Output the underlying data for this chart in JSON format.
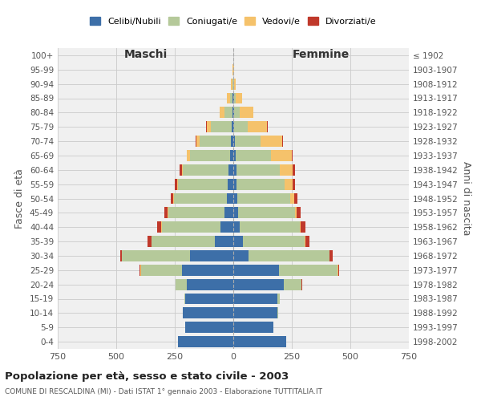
{
  "age_groups": [
    "100+",
    "95-99",
    "90-94",
    "85-89",
    "80-84",
    "75-79",
    "70-74",
    "65-69",
    "60-64",
    "55-59",
    "50-54",
    "45-49",
    "40-44",
    "35-39",
    "30-34",
    "25-29",
    "20-24",
    "15-19",
    "10-14",
    "5-9",
    "0-4"
  ],
  "birth_years": [
    "≤ 1902",
    "1903-1907",
    "1908-1912",
    "1913-1917",
    "1918-1922",
    "1923-1927",
    "1928-1932",
    "1933-1937",
    "1938-1942",
    "1943-1947",
    "1948-1952",
    "1953-1957",
    "1958-1962",
    "1963-1967",
    "1968-1972",
    "1973-1977",
    "1978-1982",
    "1983-1987",
    "1988-1992",
    "1993-1997",
    "1998-2002"
  ],
  "male": {
    "celibi": [
      0,
      0,
      1,
      2,
      4,
      6,
      10,
      15,
      20,
      25,
      28,
      38,
      55,
      80,
      185,
      220,
      200,
      205,
      215,
      205,
      235
    ],
    "coniugati": [
      0,
      1,
      4,
      12,
      35,
      90,
      135,
      170,
      195,
      210,
      225,
      240,
      250,
      270,
      290,
      175,
      45,
      5,
      2,
      0,
      0
    ],
    "vedovi": [
      0,
      1,
      4,
      12,
      18,
      18,
      14,
      12,
      5,
      4,
      3,
      2,
      2,
      1,
      1,
      1,
      1,
      0,
      0,
      0,
      0
    ],
    "divorziati": [
      0,
      0,
      0,
      0,
      0,
      2,
      2,
      3,
      8,
      10,
      12,
      14,
      18,
      16,
      8,
      4,
      2,
      0,
      0,
      0,
      0
    ]
  },
  "female": {
    "nubili": [
      0,
      0,
      1,
      2,
      3,
      5,
      8,
      10,
      12,
      15,
      18,
      22,
      28,
      40,
      65,
      195,
      215,
      190,
      190,
      170,
      225
    ],
    "coniugate": [
      0,
      0,
      2,
      8,
      25,
      55,
      110,
      150,
      185,
      205,
      225,
      240,
      255,
      265,
      345,
      250,
      75,
      8,
      2,
      0,
      0
    ],
    "vedove": [
      0,
      2,
      8,
      28,
      58,
      85,
      92,
      90,
      58,
      32,
      18,
      10,
      6,
      3,
      2,
      2,
      2,
      0,
      0,
      0,
      0
    ],
    "divorziate": [
      0,
      0,
      0,
      0,
      0,
      2,
      2,
      3,
      8,
      10,
      14,
      16,
      20,
      18,
      14,
      4,
      2,
      0,
      0,
      0,
      0
    ]
  },
  "colors": {
    "celibi": "#3d6fa8",
    "coniugati": "#b5c99a",
    "vedovi": "#f5c26b",
    "divorziati": "#c0392b"
  },
  "title": "Popolazione per età, sesso e stato civile - 2003",
  "subtitle": "COMUNE DI RESCALDINA (MI) - Dati ISTAT 1° gennaio 2003 - Elaborazione TUTTITALIA.IT",
  "xlabel_left": "Maschi",
  "xlabel_right": "Femmine",
  "ylabel_left": "Fasce di età",
  "ylabel_right": "Anni di nascita",
  "xlim": 750,
  "bg_color": "#ffffff",
  "grid_color": "#cccccc",
  "legend_labels": [
    "Celibi/Nubili",
    "Coniugati/e",
    "Vedovi/e",
    "Divorziati/e"
  ]
}
